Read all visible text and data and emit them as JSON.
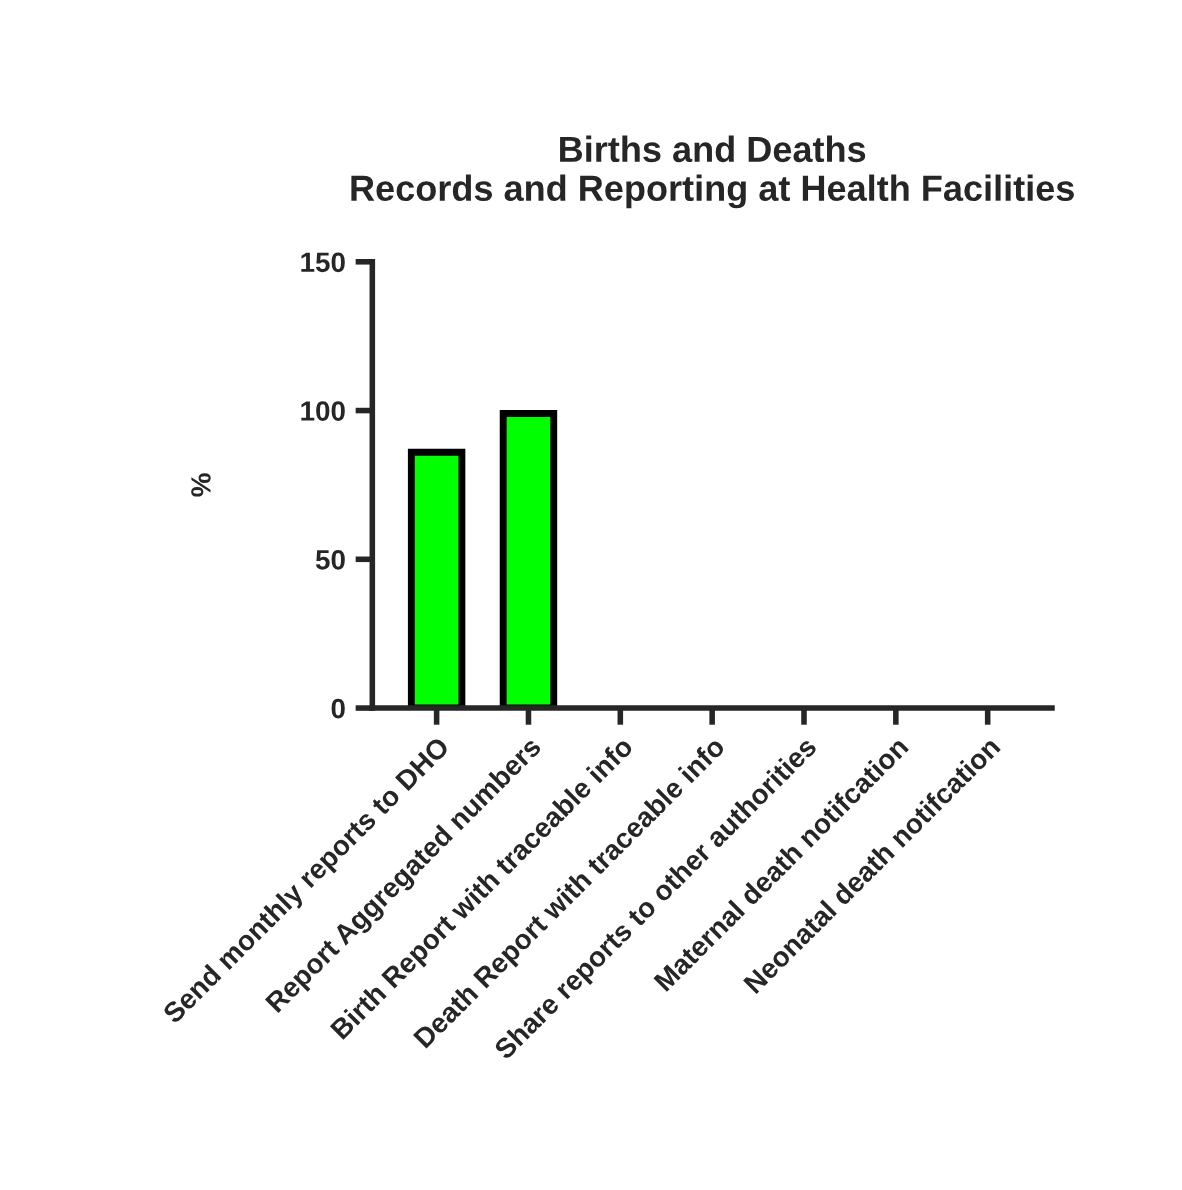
{
  "chart_data": {
    "type": "bar",
    "title": "Births and Deaths\nRecords and Reporting at Health Facilities",
    "ylabel": "%",
    "categories": [
      "Send monthly reports to DHO",
      "Report Aggregated numbers",
      "Birth Report with traceable info",
      "Death Report with traceable info",
      "Share reports to other authorities",
      "Maternal death notifcation",
      "Neonatal death notifcation"
    ],
    "values": [
      86,
      99,
      0,
      0,
      0,
      0,
      0
    ],
    "color": "#00ff00",
    "ylim": [
      0,
      150
    ],
    "yticks": [
      0,
      50,
      100,
      150
    ],
    "grid": false,
    "legend": false
  }
}
